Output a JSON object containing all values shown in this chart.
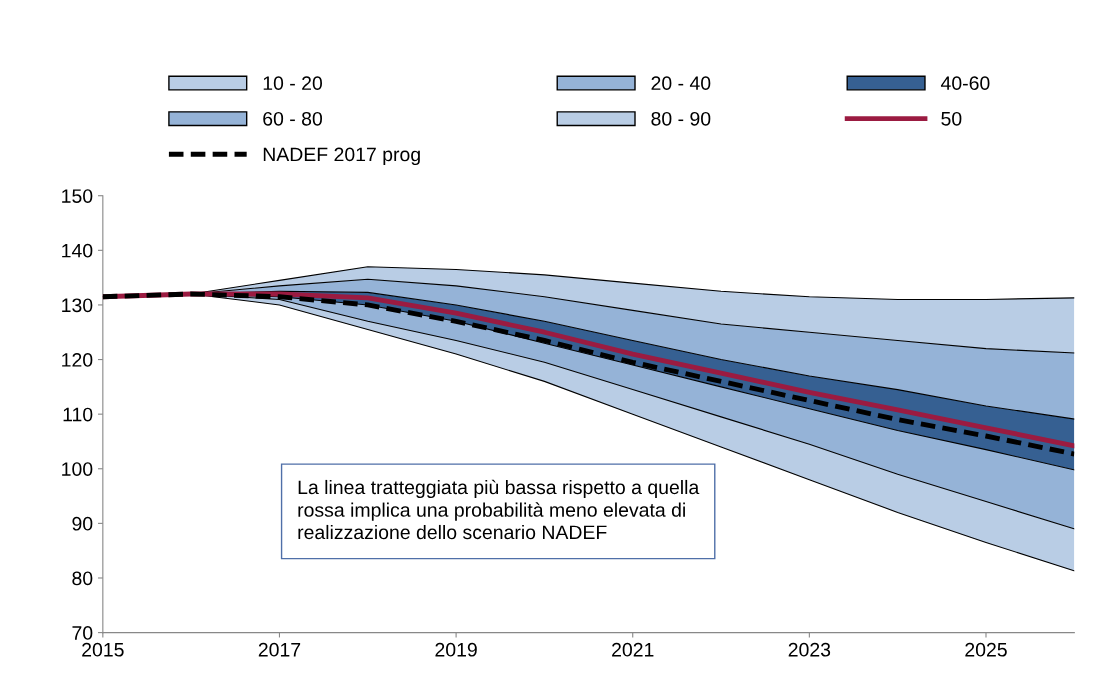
{
  "chart_data": {
    "type": "area",
    "x": [
      2015,
      2016,
      2017,
      2018,
      2019,
      2020,
      2021,
      2022,
      2023,
      2024,
      2025,
      2026
    ],
    "series": [
      {
        "color": "#ffffff",
        "values": [
          131.5,
          132,
          130,
          125.5,
          121,
          116,
          110,
          104,
          98,
          92,
          86.5,
          81.3
        ]
      },
      {
        "name": "10 - 20",
        "color": "#b9cde5",
        "values": [
          131.5,
          132,
          131,
          127,
          123.5,
          119.5,
          114.5,
          109.5,
          104.5,
          99,
          94,
          89
        ]
      },
      {
        "name": "20 - 40",
        "color": "#95b3d7",
        "values": [
          131.5,
          132,
          131.5,
          130,
          127,
          123,
          119,
          115,
          111,
          107,
          103.5,
          99.8
        ]
      },
      {
        "name": "40-60",
        "color": "#366092",
        "values": [
          131.5,
          132,
          132.5,
          132.3,
          130,
          127,
          123.5,
          120,
          117,
          114.5,
          111.5,
          109.1
        ]
      },
      {
        "name": "60 - 80",
        "color": "#95b3d7",
        "values": [
          131.5,
          132,
          133.5,
          134.7,
          133.5,
          131.5,
          129,
          126.5,
          125,
          123.5,
          122,
          121.2
        ]
      },
      {
        "name": "80 - 90",
        "color": "#b9cde5",
        "values": [
          131.5,
          132,
          134.5,
          137,
          136.5,
          135.5,
          134,
          132.5,
          131.5,
          131,
          131,
          131.3
        ]
      },
      {
        "name": "50",
        "type": "line",
        "color": "#9b1b41",
        "line_style": "solid",
        "values": [
          131.5,
          132,
          132,
          131.3,
          128.5,
          125,
          121,
          117.5,
          114,
          110.8,
          107.5,
          104.2
        ]
      },
      {
        "name": "NADEF 2017 prog",
        "type": "line",
        "color": "#000000",
        "line_style": "dashed",
        "values": [
          131.5,
          132,
          131.5,
          130,
          127,
          123.5,
          119.5,
          116,
          112.5,
          109,
          106,
          102.7
        ]
      }
    ],
    "xlim": [
      2015,
      2026
    ],
    "xticks": [
      2015,
      2017,
      2019,
      2021,
      2023,
      2025
    ],
    "ylim": [
      70,
      150
    ],
    "yticks": [
      70,
      80,
      90,
      100,
      110,
      120,
      130,
      140,
      150
    ],
    "annotations": [
      "La linea tratteggiata più bassa rispetto a quella rossa implica una probabilità meno elevata di realizzazione dello scenario NADEF"
    ],
    "legend": "top",
    "grid": false
  }
}
